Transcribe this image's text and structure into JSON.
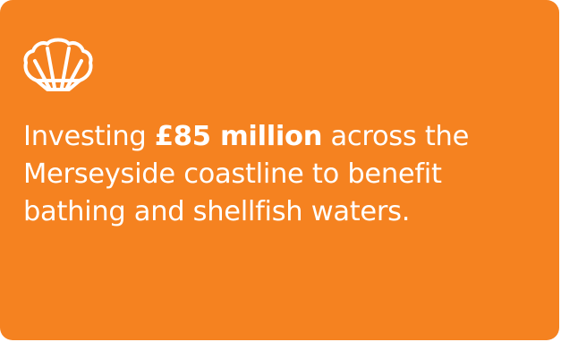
{
  "card": {
    "background_color": "#f58220",
    "text_color": "#ffffff",
    "icon": "shell-icon",
    "text_before": "Investing ",
    "text_highlight": "£85 million",
    "text_after": " across the Merseyside coastline to benefit bathing and shellfish waters."
  }
}
